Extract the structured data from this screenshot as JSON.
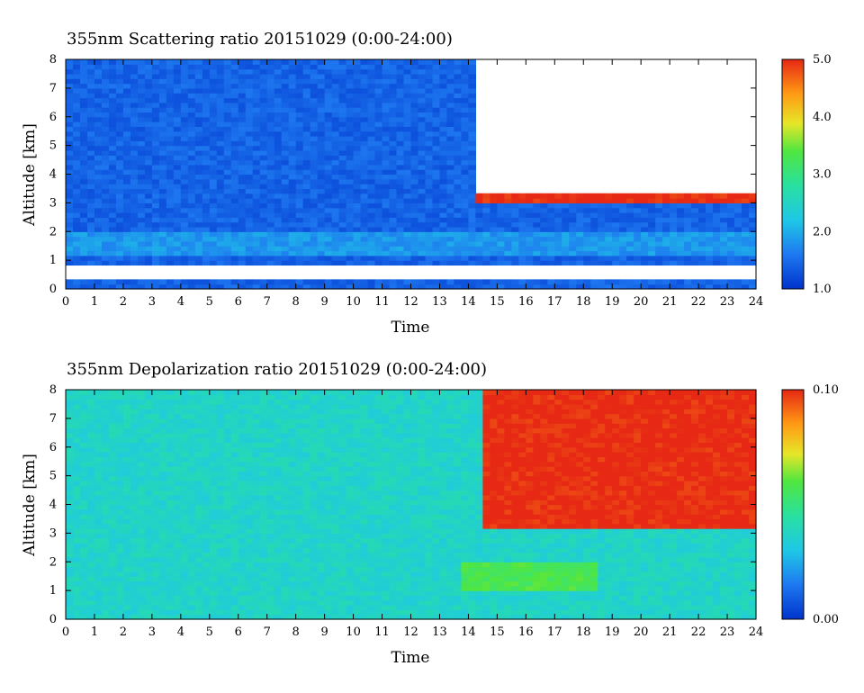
{
  "chart_data": [
    {
      "type": "heatmap",
      "title": "355nm Scattering ratio  20151029 (0:00-24:00)",
      "xlabel": "Time",
      "ylabel": "Altitude [km]",
      "xlim": [
        0,
        24
      ],
      "ylim": [
        0,
        8
      ],
      "x_ticks": [
        "0",
        "1",
        "2",
        "3",
        "4",
        "5",
        "6",
        "7",
        "8",
        "9",
        "10",
        "11",
        "12",
        "13",
        "14",
        "15",
        "16",
        "17",
        "18",
        "19",
        "20",
        "21",
        "22",
        "23",
        "24"
      ],
      "y_ticks": [
        "0",
        "1",
        "2",
        "3",
        "4",
        "5",
        "6",
        "7",
        "8"
      ],
      "colorbar": {
        "range": [
          1.0,
          5.0
        ],
        "labels": [
          "1.0",
          "2.0",
          "3.0",
          "4.0",
          "5.0"
        ],
        "colors": [
          "#0033cc",
          "#1e78f0",
          "#1ec8e6",
          "#28e0a0",
          "#50e640",
          "#e6e628",
          "#ff9a14",
          "#e62814"
        ]
      },
      "features": [
        {
          "description": "background field",
          "x_range": [
            0,
            24
          ],
          "y_range": [
            0.6,
            8
          ],
          "approx_value": 1.4
        },
        {
          "description": "boundary layer band",
          "x_range": [
            0,
            24
          ],
          "y_range": [
            1.2,
            2.0
          ],
          "approx_value": 1.8
        },
        {
          "description": "cloud layer",
          "x_range": [
            14.2,
            24
          ],
          "y_range": [
            3.0,
            3.6
          ],
          "approx_value": 5.0
        },
        {
          "description": "no data above cloud",
          "x_range": [
            14.2,
            24
          ],
          "y_range": [
            3.4,
            8
          ]
        },
        {
          "description": "no data near ground",
          "x_range": [
            0,
            24
          ],
          "y_range": [
            0.4,
            0.9
          ]
        }
      ]
    },
    {
      "type": "heatmap",
      "title": "355nm Depolarization ratio  20151029 (0:00-24:00)",
      "xlabel": "Time",
      "ylabel": "Altitude [km]",
      "xlim": [
        0,
        24
      ],
      "ylim": [
        0,
        8
      ],
      "x_ticks": [
        "0",
        "1",
        "2",
        "3",
        "4",
        "5",
        "6",
        "7",
        "8",
        "9",
        "10",
        "11",
        "12",
        "13",
        "14",
        "15",
        "16",
        "17",
        "18",
        "19",
        "20",
        "21",
        "22",
        "23",
        "24"
      ],
      "y_ticks": [
        "0",
        "1",
        "2",
        "3",
        "4",
        "5",
        "6",
        "7",
        "8"
      ],
      "colorbar": {
        "range": [
          0.0,
          0.1
        ],
        "labels": [
          "0.00",
          "0.10"
        ],
        "colors": [
          "#0033cc",
          "#1e78f0",
          "#1ec8e6",
          "#28e0a0",
          "#50e640",
          "#e6e628",
          "#ff9a14",
          "#e62814"
        ]
      },
      "features": [
        {
          "description": "background field",
          "x_range": [
            0,
            24
          ],
          "y_range": [
            0,
            8
          ],
          "approx_value": 0.035
        },
        {
          "description": "enhanced layer",
          "x_range": [
            13.8,
            18.5
          ],
          "y_range": [
            1.0,
            2.0
          ],
          "approx_value": 0.055
        },
        {
          "description": "high depolarization (ice cloud)",
          "x_range": [
            14.5,
            24
          ],
          "y_range": [
            3.2,
            8
          ],
          "approx_value": 0.1
        }
      ]
    }
  ]
}
